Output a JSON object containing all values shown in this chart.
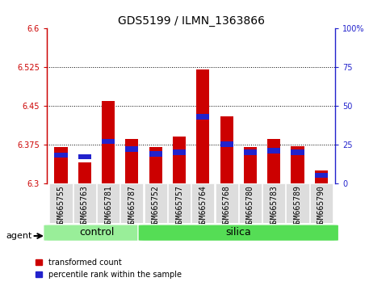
{
  "title": "GDS5199 / ILMN_1363866",
  "samples": [
    "GSM665755",
    "GSM665763",
    "GSM665781",
    "GSM665787",
    "GSM665752",
    "GSM665757",
    "GSM665764",
    "GSM665768",
    "GSM665780",
    "GSM665783",
    "GSM665789",
    "GSM665790"
  ],
  "groups": [
    "control",
    "control",
    "control",
    "control",
    "silica",
    "silica",
    "silica",
    "silica",
    "silica",
    "silica",
    "silica",
    "silica"
  ],
  "red_values": [
    6.37,
    6.34,
    6.46,
    6.385,
    6.37,
    6.39,
    6.52,
    6.43,
    6.37,
    6.385,
    6.372,
    6.325
  ],
  "blue_pct": [
    18,
    17,
    27,
    22,
    19,
    20,
    43,
    25,
    20,
    21,
    20,
    5
  ],
  "y_min": 6.3,
  "y_max": 6.6,
  "y_ticks_left": [
    6.3,
    6.375,
    6.45,
    6.525,
    6.6
  ],
  "y_ticks_right": [
    0,
    25,
    50,
    75,
    100
  ],
  "bar_width": 0.55,
  "red_color": "#cc0000",
  "blue_color": "#2222cc",
  "control_color": "#99ee99",
  "silica_color": "#55dd55",
  "group_label_fontsize": 9,
  "tick_fontsize": 7,
  "title_fontsize": 10,
  "agent_fontsize": 8
}
